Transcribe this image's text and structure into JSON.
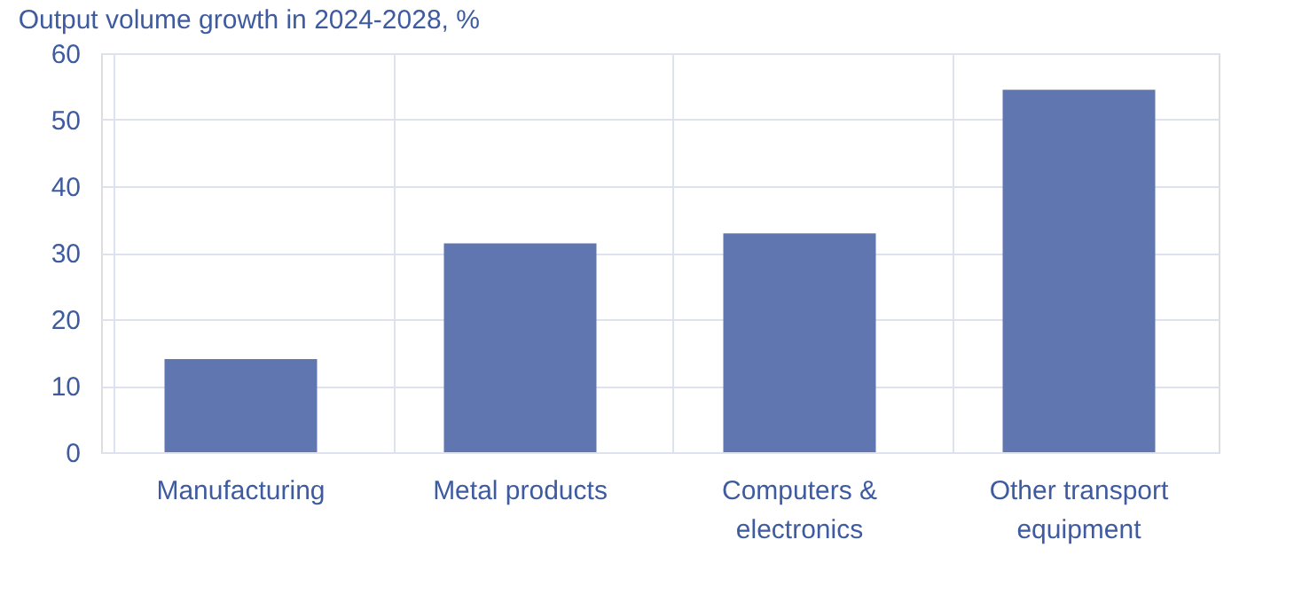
{
  "chart_data": {
    "type": "bar",
    "title": "Output volume growth in 2024-2028, %",
    "categories": [
      "Manufacturing",
      "Metal products",
      "Computers & electronics",
      "Other transport equipment"
    ],
    "values": [
      14.0,
      31.4,
      32.9,
      54.5
    ],
    "color": "#5f76b0",
    "ylim": [
      0,
      60
    ],
    "yticks": [
      0,
      10,
      20,
      30,
      40,
      50,
      60
    ],
    "grid": true
  }
}
